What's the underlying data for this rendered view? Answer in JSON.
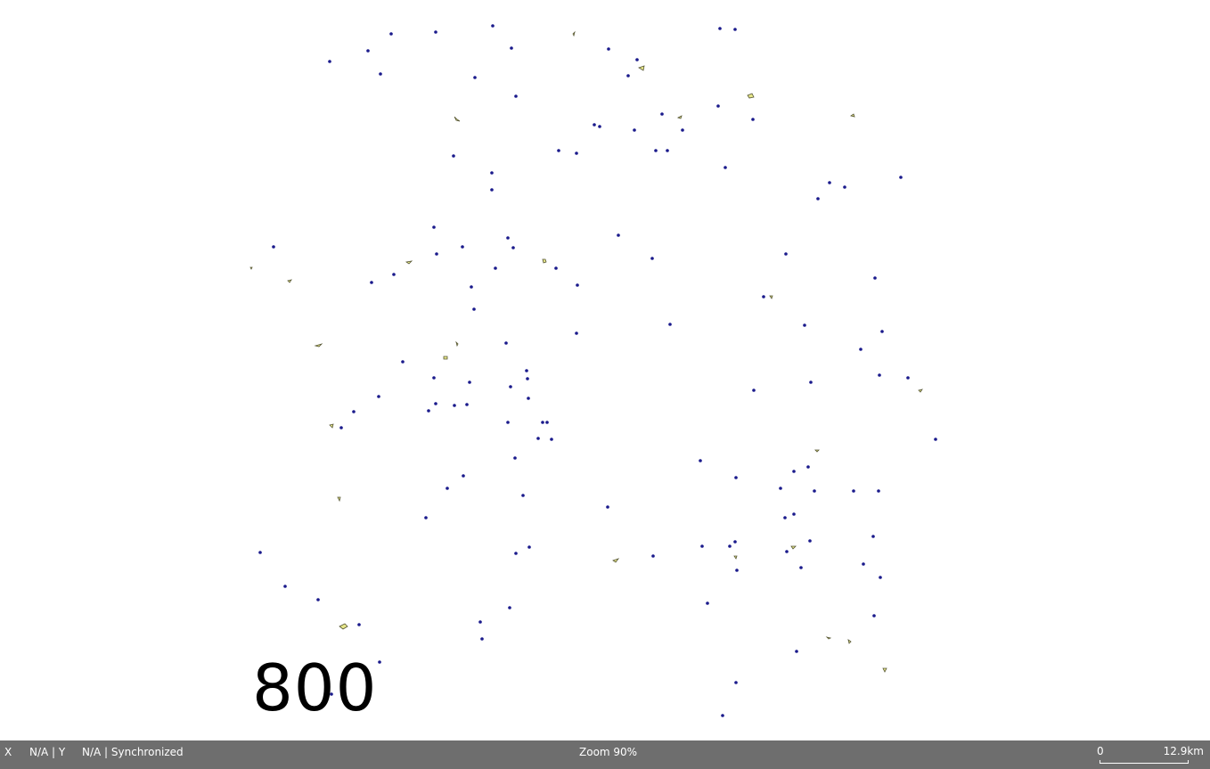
{
  "map": {
    "label": "800",
    "point_color": "#1a1a8c",
    "polygon_fill": "#e6e68a",
    "polygon_stroke": "#555533"
  },
  "status_bar": {
    "x_label": "X",
    "x_value": "N/A | Y",
    "y_value": "N/A | Synchronized",
    "zoom": "Zoom 90%",
    "background": "#6e6e6e"
  },
  "scale": {
    "min_label": "0",
    "max_label": "12.9km"
  }
}
